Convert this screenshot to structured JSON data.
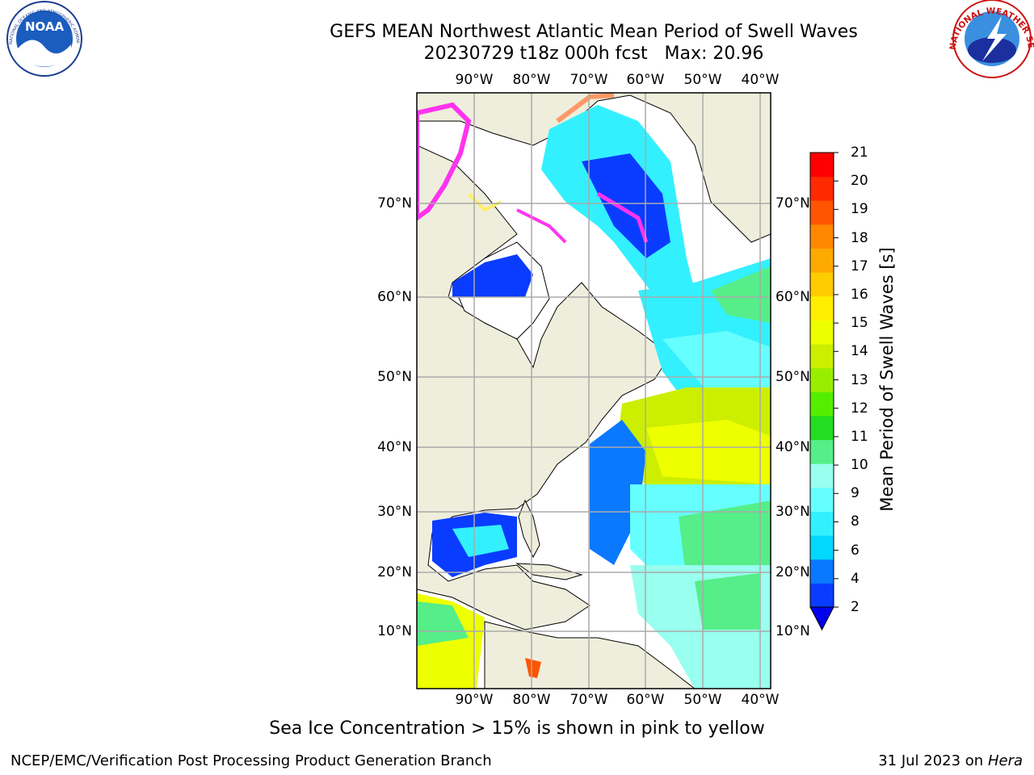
{
  "header": {
    "title_line1": "GEFS MEAN Northwest Atlantic Mean Period of Swell Waves",
    "title_line2": "20230729 t18z 000h fcst   Max: 20.96"
  },
  "map": {
    "lon_labels": [
      "90°W",
      "80°W",
      "70°W",
      "60°W",
      "50°W",
      "40°W"
    ],
    "lat_labels": [
      "70°N",
      "60°N",
      "50°N",
      "40°N",
      "30°N",
      "20°N",
      "10°N"
    ],
    "grid": true,
    "land_color": "#efeedc",
    "ice_colors": [
      "#ff33ee",
      "#ff9966",
      "#ffee66"
    ]
  },
  "colorbar": {
    "title": "Mean Period of Swell Waves [s]",
    "ticks": [
      "2",
      "4",
      "6",
      "8",
      "9",
      "10",
      "11",
      "12",
      "13",
      "14",
      "15",
      "16",
      "17",
      "18",
      "19",
      "20",
      "21"
    ],
    "colors": [
      "#0a3cff",
      "#0a78ff",
      "#00d8ff",
      "#33f0ff",
      "#66ffff",
      "#99ffee",
      "#55ee88",
      "#22dd22",
      "#55ee00",
      "#99ee00",
      "#ccee00",
      "#eeff00",
      "#ffee00",
      "#ffcc00",
      "#ffaa00",
      "#ff8800",
      "#ff5500",
      "#ff2a00",
      "#ff0000"
    ],
    "extend_color": "#0000ee"
  },
  "logos": {
    "noaa_text": "NOAA",
    "noaa_ring_text": "NATIONAL OCEANIC AND ATMOSPHERIC ADMINISTRATION · U.S. DEPARTMENT OF COMMERCE",
    "nws_ring_text": "NATIONAL WEATHER SERVICE"
  },
  "caption": "Sea Ice Concentration > 15% is shown in pink to yellow",
  "footer": {
    "left": "NCEP/EMC/Verification Post Processing Product Generation Branch",
    "right_date": "31 Jul 2023 on ",
    "right_host": "Hera"
  }
}
